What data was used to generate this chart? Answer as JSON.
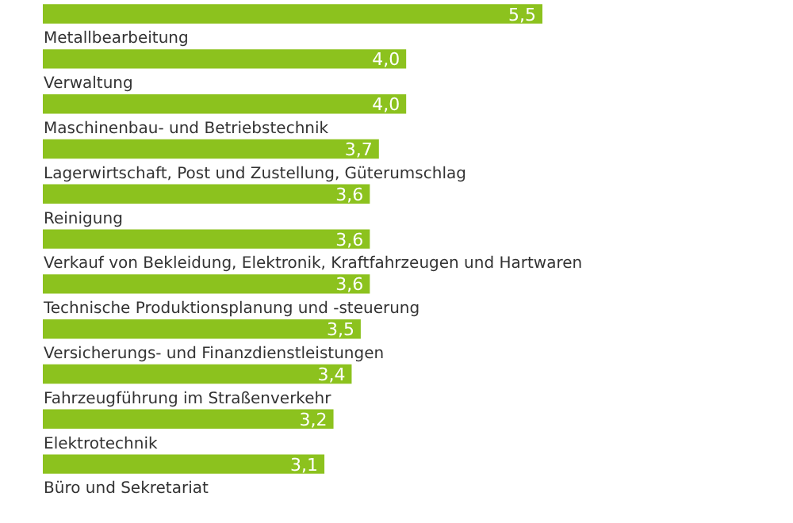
{
  "chart_data": {
    "type": "bar",
    "orientation": "horizontal",
    "categories": [
      null,
      "Metallbearbeitung",
      "Verwaltung",
      "Maschinenbau- und Betriebstechnik",
      "Lagerwirtschaft, Post und Zustellung, Güterumschlag",
      "Reinigung",
      "Verkauf von Bekleidung, Elektronik, Kraftfahrzeugen und Hartwaren",
      "Technische Produktionsplanung und -steuerung",
      "Versicherungs- und Finanzdienstleistungen",
      "Fahrzeugführung im Straßenverkehr",
      "Elektrotechnik",
      "Büro und Sekretariat"
    ],
    "values": [
      5.5,
      4.0,
      4.0,
      3.7,
      3.6,
      3.6,
      3.6,
      3.5,
      3.4,
      3.2,
      3.1,
      null
    ],
    "value_labels": [
      "5,5",
      "4,0",
      "4,0",
      "3,7",
      "3,6",
      "3,6",
      "3,6",
      "3,5",
      "3,4",
      "3,2",
      "3,1",
      null
    ],
    "color": "#8cc21e"
  }
}
